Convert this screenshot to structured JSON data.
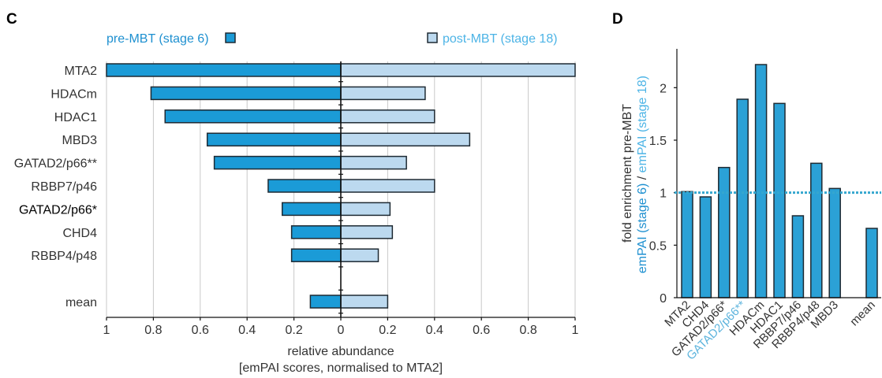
{
  "panels": {
    "c_label": "C",
    "d_label": "D"
  },
  "colors": {
    "pre_bar": "#1b9bd7",
    "post_bar": "#bcd9ef",
    "enrichment_bar": "#2ba1d6",
    "bar_outline": "#1e2a33",
    "pre_text": "#1e90d0",
    "post_text": "#4db4e6",
    "reference_line": "#35a7cf",
    "axis": "#111111",
    "grid": "#c9c9c9",
    "label_text": "#333333",
    "panel_label": "#000000"
  },
  "chart_data": [
    {
      "type": "bar",
      "categories": [
        "MTA2",
        "HDACm",
        "HDAC1",
        "MBD3",
        "GATAD2/p66**",
        "RBBP7/p46",
        "GATAD2/p66*",
        "CHD4",
        "RBBP4/p48",
        "mean"
      ],
      "series": [
        {
          "name": "pre-MBT (stage 6)",
          "values": [
            1.0,
            0.81,
            0.75,
            0.57,
            0.54,
            0.31,
            0.25,
            0.21,
            0.21,
            0.13
          ]
        },
        {
          "name": "post-MBT (stage 18)",
          "values": [
            1.0,
            0.36,
            0.4,
            0.55,
            0.28,
            0.4,
            0.21,
            0.22,
            0.16,
            0.2
          ]
        }
      ],
      "xticks": [
        "1",
        "0.8",
        "0.6",
        "0.4",
        "0.2",
        "0",
        "0.2",
        "0.4",
        "0.6",
        "0.8",
        "1"
      ],
      "xlim_each_side": [
        0,
        1
      ],
      "xlabel": "relative abundance",
      "xlabel_sub": "[emPAI scores, normalised to MTA2]",
      "grid": true,
      "legend": "top",
      "highlight_label": {
        "category": "GATAD2/p66*",
        "color": "#000000"
      }
    },
    {
      "type": "bar",
      "categories": [
        "MTA2",
        "CHD4",
        "GATAD2/p66*",
        "GATAD2/p66**",
        "HDACm",
        "HDAC1",
        "RBBP7/p46",
        "RBBP4/p48",
        "MBD3",
        "mean"
      ],
      "values": [
        1.01,
        0.96,
        1.24,
        1.89,
        2.22,
        1.85,
        0.78,
        1.28,
        1.04,
        0.66
      ],
      "ylabel": "fold enrichment pre-MBT",
      "ylabel_sub": {
        "numerator": "emPAI (stage 6)",
        "separator": " / ",
        "denominator": "emPAI (stage 18)"
      },
      "yticks": [
        "0",
        "0.5",
        "1",
        "1.5",
        "2"
      ],
      "ylim": [
        0,
        2.37
      ],
      "reference_line": 1,
      "grid": false,
      "highlight_label": {
        "category": "GATAD2/p66**",
        "color": "#5db4dd"
      }
    }
  ]
}
